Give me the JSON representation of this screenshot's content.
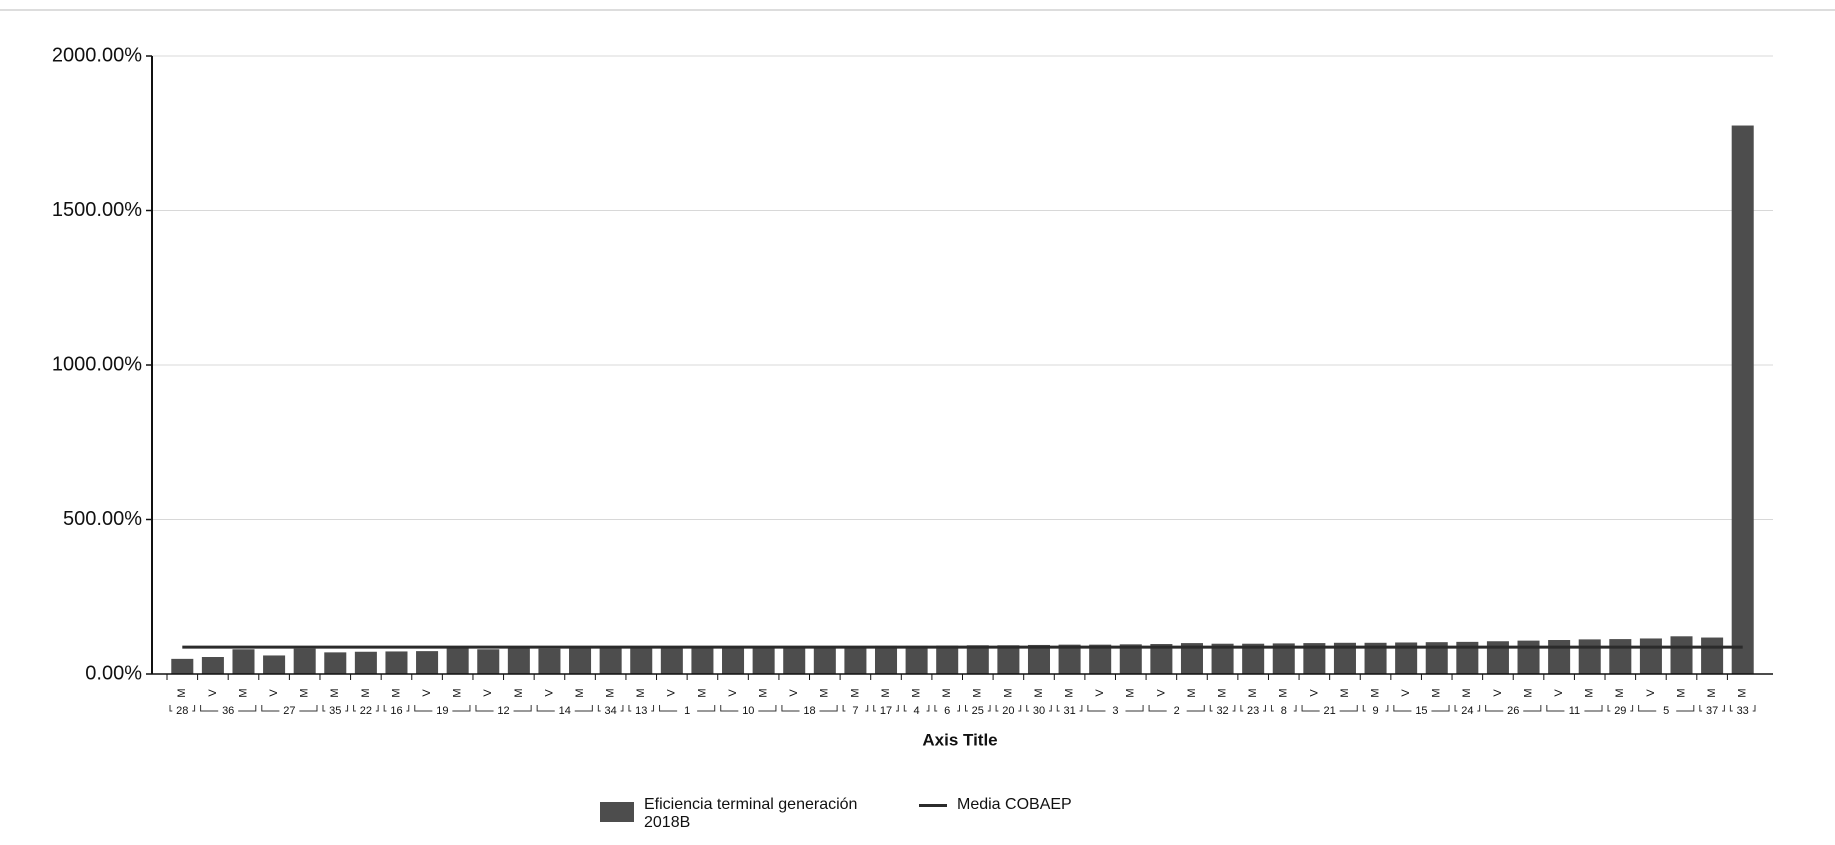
{
  "chart_data": {
    "type": "bar",
    "x_title": "Axis Title",
    "categories": [
      "M",
      "V",
      "M",
      "V",
      "M",
      "M",
      "M",
      "M",
      "V",
      "M",
      "V",
      "M",
      "V",
      "M",
      "M",
      "M",
      "V",
      "M",
      "V",
      "M",
      "V",
      "M",
      "M",
      "M",
      "M",
      "M",
      "M",
      "M",
      "M",
      "M",
      "V",
      "M",
      "V",
      "M",
      "M",
      "M",
      "M",
      "V",
      "M",
      "M",
      "V",
      "M",
      "M",
      "V",
      "M",
      "V",
      "M",
      "M",
      "V",
      "M",
      "M",
      "M"
    ],
    "groups": [
      "28",
      "36",
      null,
      "27",
      null,
      "35",
      "22",
      "16",
      "19",
      null,
      "12",
      null,
      "14",
      null,
      "34",
      "13",
      "1",
      null,
      "10",
      null,
      "18",
      null,
      "7",
      "17",
      "4",
      "6",
      "25",
      "20",
      "30",
      "31",
      "3",
      null,
      "2",
      null,
      "32",
      "23",
      "8",
      "21",
      null,
      "9",
      "15",
      null,
      "24",
      "26",
      null,
      "11",
      null,
      "29",
      "5",
      null,
      "37",
      "33"
    ],
    "series": [
      {
        "name": "Eficiencia terminal generación 2018B",
        "type": "bar",
        "color": "#4d4d4d",
        "values": [
          49,
          55,
          80,
          60,
          82,
          70,
          72,
          73,
          74,
          83,
          80,
          84,
          82,
          85,
          86,
          86,
          87,
          88,
          88,
          89,
          89,
          90,
          90,
          91,
          91,
          92,
          93,
          93,
          94,
          95,
          95,
          96,
          97,
          100,
          98,
          98,
          99,
          100,
          101,
          101,
          102,
          103,
          104,
          106,
          108,
          110,
          112,
          113,
          115,
          122,
          118,
          1775
        ]
      },
      {
        "name": "Media COBAEP",
        "type": "line",
        "color": "#2b2b2b",
        "values": [
          87,
          87,
          87,
          87,
          87,
          87,
          87,
          87,
          87,
          87,
          87,
          87,
          87,
          87,
          87,
          87,
          87,
          87,
          87,
          87,
          87,
          87,
          87,
          87,
          87,
          87,
          87,
          87,
          87,
          87,
          87,
          87,
          87,
          87,
          87,
          87,
          87,
          87,
          87,
          87,
          87,
          87,
          87,
          87,
          87,
          87,
          87,
          87,
          87,
          87,
          87,
          87
        ]
      }
    ],
    "ylim": [
      0,
      2000
    ],
    "yticks": [
      {
        "value": 0,
        "label": "0.00%"
      },
      {
        "value": 500,
        "label": "500.00%"
      },
      {
        "value": 1000,
        "label": "1000.00%"
      },
      {
        "value": 1500,
        "label": "1500.00%"
      },
      {
        "value": 2000,
        "label": "2000.00%"
      }
    ],
    "grid": true
  }
}
